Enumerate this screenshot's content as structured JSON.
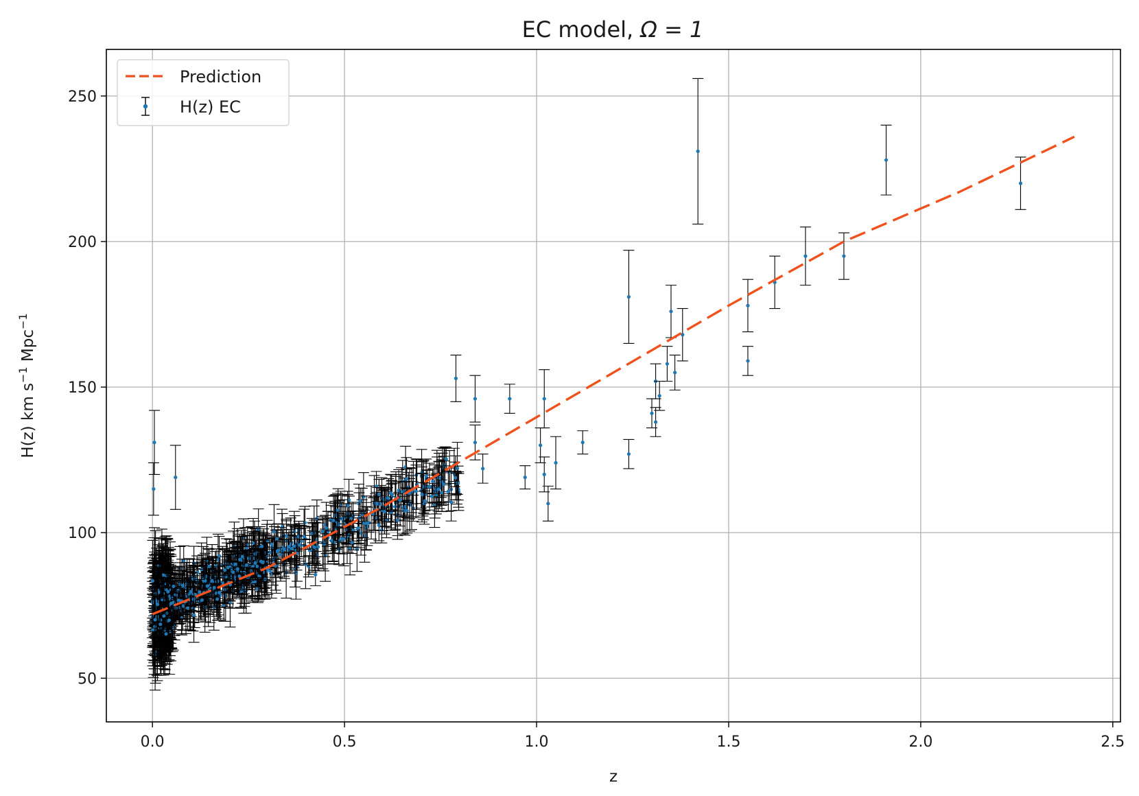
{
  "chart_data": {
    "type": "scatter",
    "title_prefix": "EC model, ",
    "title_symbol": "Ω = 1",
    "xlabel": "z",
    "ylabel_parts": [
      "H(z) km s",
      "−1",
      " Mpc",
      "−1"
    ],
    "xlim": [
      -0.12,
      2.52
    ],
    "ylim": [
      35,
      266
    ],
    "x_ticks": [
      0.0,
      0.5,
      1.0,
      1.5,
      2.0,
      2.5
    ],
    "x_tick_labels": [
      "0.0",
      "0.5",
      "1.0",
      "1.5",
      "2.0",
      "2.5"
    ],
    "y_ticks": [
      50,
      100,
      150,
      200,
      250
    ],
    "y_tick_labels": [
      "50",
      "100",
      "150",
      "200",
      "250"
    ],
    "grid": true,
    "legend_position": "top-left",
    "colors": {
      "prediction": "#f0521e",
      "points": "#1f77b4",
      "errorbars": "#000000",
      "grid": "#b0b0b0"
    },
    "series": [
      {
        "name": "Prediction",
        "kind": "dashed-line",
        "x": [
          0.0,
          0.3,
          0.6,
          0.9,
          1.2,
          1.5,
          1.8,
          2.1,
          2.4
        ],
        "y": [
          72,
          88,
          109,
          132,
          155,
          178,
          200,
          217,
          236
        ]
      },
      {
        "name": "H(z) EC",
        "kind": "errorbar-points",
        "highlighted_points": [
          {
            "x": 0.005,
            "y": 131,
            "err": 11
          },
          {
            "x": 0.003,
            "y": 115,
            "err": 9
          },
          {
            "x": 0.06,
            "y": 119,
            "err": 11
          },
          {
            "x": 0.79,
            "y": 153,
            "err": 8
          },
          {
            "x": 0.84,
            "y": 146,
            "err": 8
          },
          {
            "x": 0.84,
            "y": 131,
            "err": 6
          },
          {
            "x": 0.86,
            "y": 122,
            "err": 5
          },
          {
            "x": 0.93,
            "y": 146,
            "err": 5
          },
          {
            "x": 0.97,
            "y": 119,
            "err": 4
          },
          {
            "x": 1.01,
            "y": 130,
            "err": 6
          },
          {
            "x": 1.02,
            "y": 146,
            "err": 10
          },
          {
            "x": 1.02,
            "y": 120,
            "err": 6
          },
          {
            "x": 1.03,
            "y": 110,
            "err": 6
          },
          {
            "x": 1.05,
            "y": 124,
            "err": 9
          },
          {
            "x": 1.12,
            "y": 131,
            "err": 4
          },
          {
            "x": 1.24,
            "y": 181,
            "err": 16
          },
          {
            "x": 1.24,
            "y": 127,
            "err": 5
          },
          {
            "x": 1.3,
            "y": 141,
            "err": 5
          },
          {
            "x": 1.31,
            "y": 152,
            "err": 6
          },
          {
            "x": 1.31,
            "y": 138,
            "err": 5
          },
          {
            "x": 1.32,
            "y": 147,
            "err": 5
          },
          {
            "x": 1.34,
            "y": 158,
            "err": 6
          },
          {
            "x": 1.35,
            "y": 176,
            "err": 9
          },
          {
            "x": 1.36,
            "y": 155,
            "err": 6
          },
          {
            "x": 1.38,
            "y": 168,
            "err": 9
          },
          {
            "x": 1.42,
            "y": 231,
            "err": 25
          },
          {
            "x": 1.55,
            "y": 178,
            "err": 9
          },
          {
            "x": 1.55,
            "y": 159,
            "err": 5
          },
          {
            "x": 1.62,
            "y": 186,
            "err": 9
          },
          {
            "x": 1.7,
            "y": 195,
            "err": 10
          },
          {
            "x": 1.8,
            "y": 195,
            "err": 8
          },
          {
            "x": 1.91,
            "y": 228,
            "err": 12
          },
          {
            "x": 2.26,
            "y": 220,
            "err": 9
          }
        ],
        "cloud": {
          "x_range": [
            0.0,
            0.8
          ],
          "trend_x": [
            0.0,
            0.1,
            0.2,
            0.3,
            0.4,
            0.5,
            0.6,
            0.7,
            0.8
          ],
          "trend_y": [
            73,
            80,
            85,
            91,
            96,
            103,
            108,
            116,
            120
          ],
          "typical_err": 5
        }
      }
    ]
  }
}
